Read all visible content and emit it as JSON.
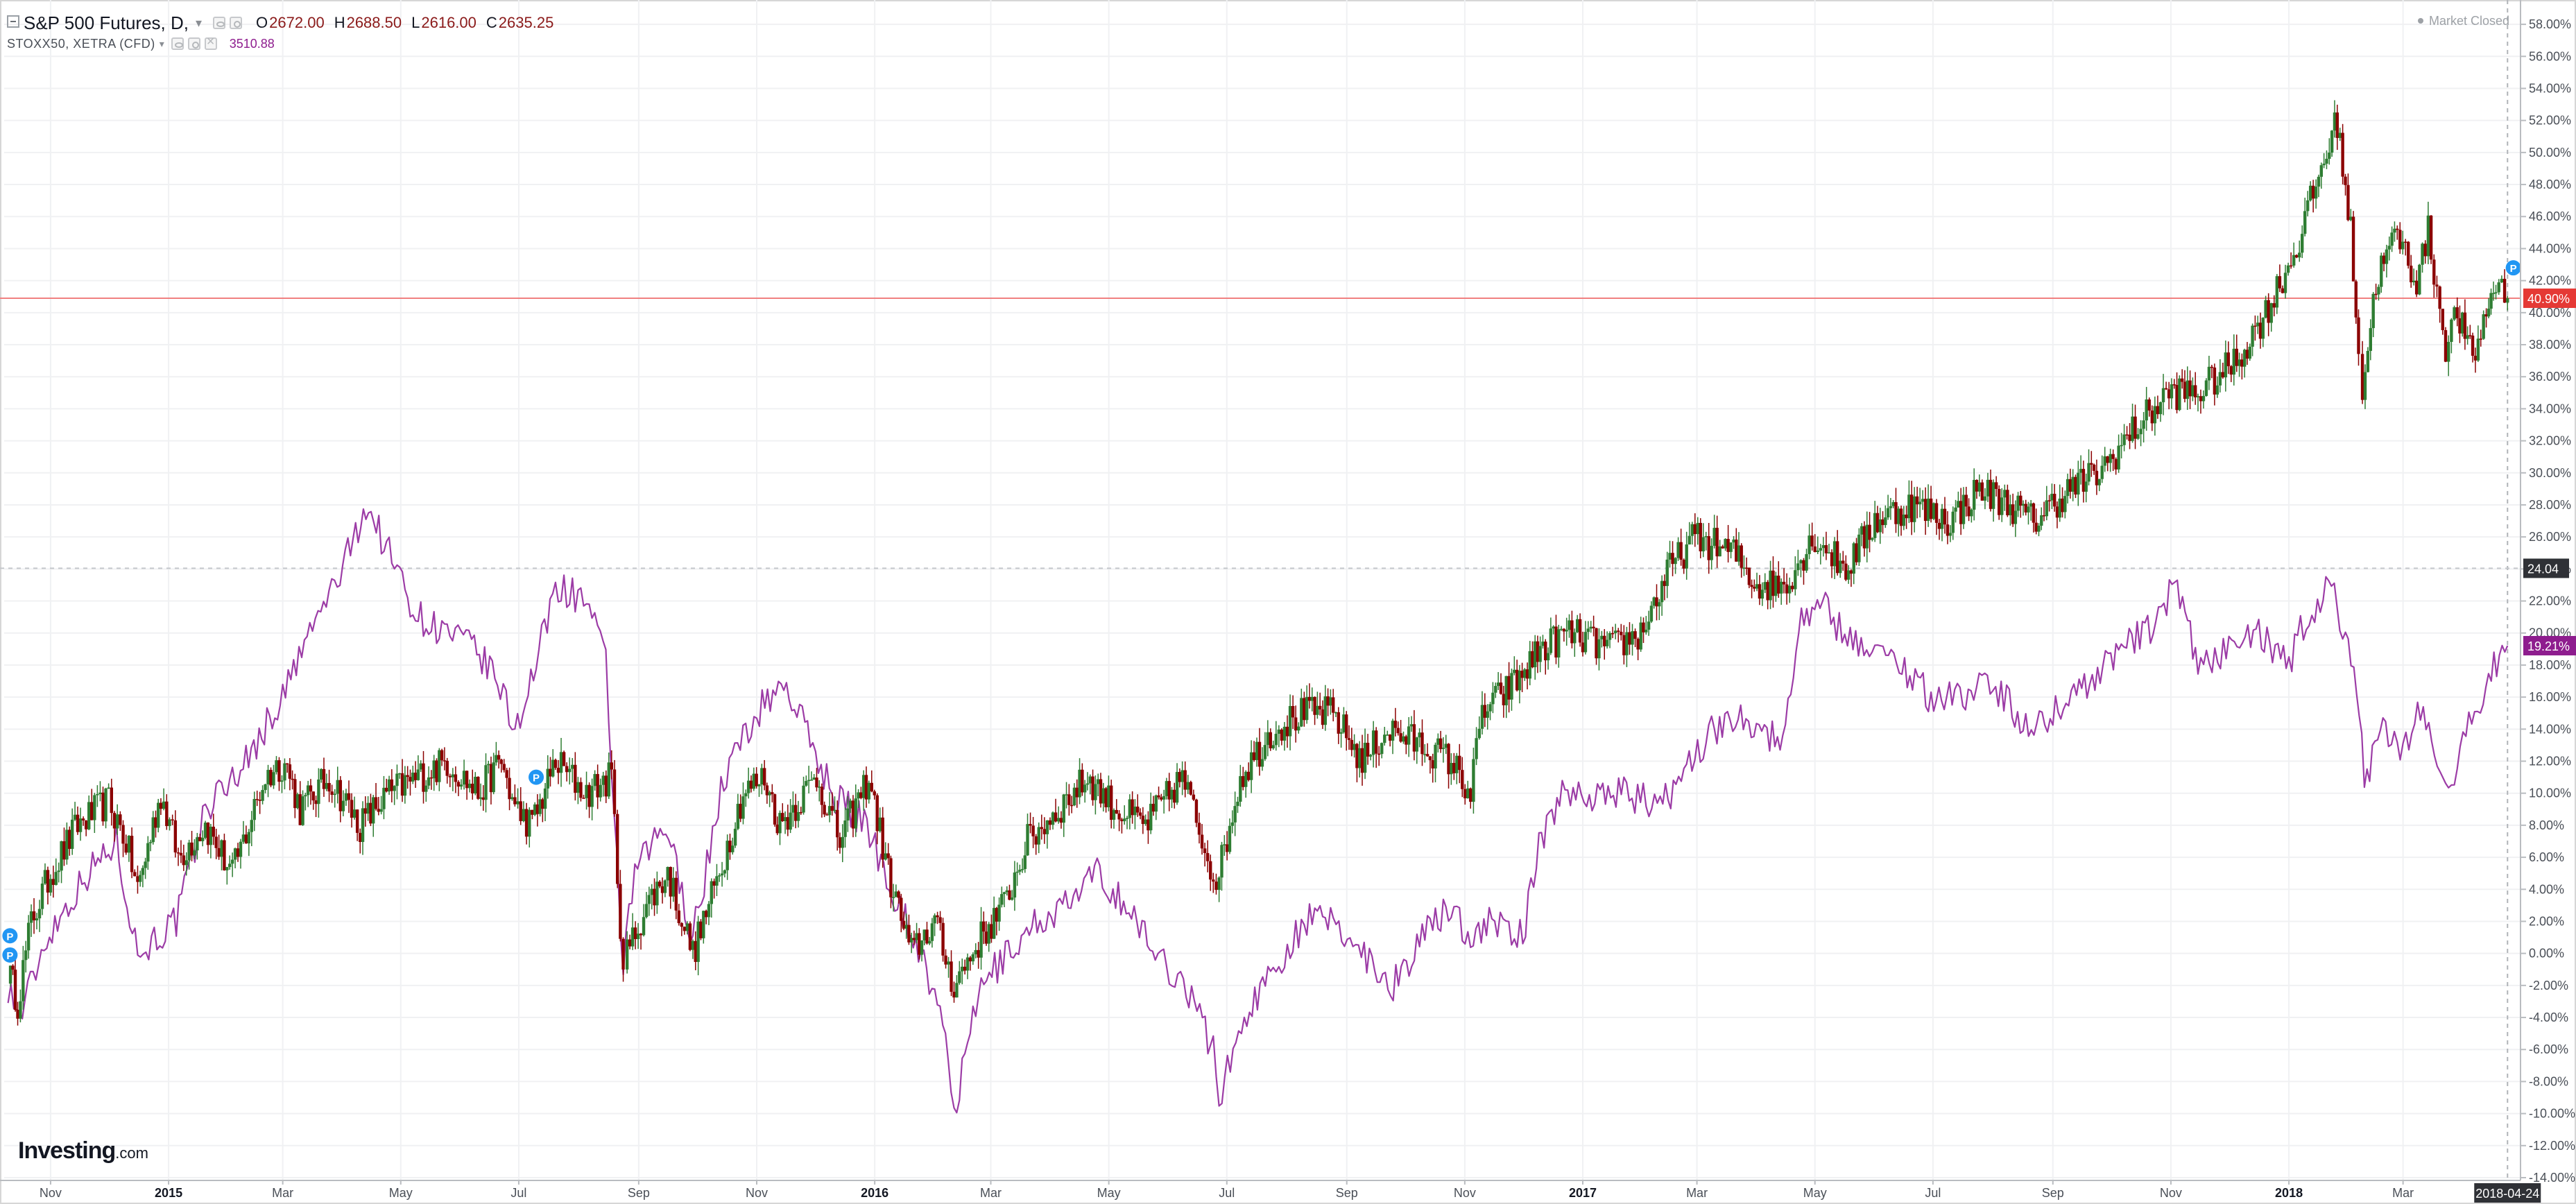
{
  "header": {
    "main_symbol": "S&P 500 Futures, D,",
    "ohlc": {
      "o_label": "O",
      "o": "2672.00",
      "h_label": "H",
      "h": "2688.50",
      "l_label": "L",
      "l": "2616.00",
      "c_label": "C",
      "c": "2635.25"
    },
    "compare_symbol": "STOXX50, XETRA (CFD)",
    "compare_value": "3510.88",
    "market_status": "Market Closed"
  },
  "branding": {
    "logo_bold": "Investing",
    "logo_suffix": ".com"
  },
  "colors": {
    "up_candle": "#2e7d32",
    "down_candle": "#8b0000",
    "compare_line": "#9c3ca6",
    "price_line": "#f08080",
    "price_tag": "#e53935",
    "compare_tag": "#8e1d8e",
    "crosshair_tag": "#2f3136",
    "marker": "#2196f3"
  },
  "chart_data": {
    "type": "line",
    "title": "",
    "x_scale": "time",
    "xlim": [
      "2014-10-08",
      "2018-04-30"
    ],
    "ylim": [
      -14,
      59
    ],
    "y_unit": "%",
    "grid": true,
    "y_ticks": [
      "58.00%",
      "56.00%",
      "54.00%",
      "52.00%",
      "50.00%",
      "48.00%",
      "46.00%",
      "44.00%",
      "42.00%",
      "40.00%",
      "38.00%",
      "36.00%",
      "34.00%",
      "32.00%",
      "30.00%",
      "28.00%",
      "26.00%",
      "24.00%",
      "22.00%",
      "20.00%",
      "18.00%",
      "16.00%",
      "14.00%",
      "12.00%",
      "10.00%",
      "8.00%",
      "6.00%",
      "4.00%",
      "2.00%",
      "0.00%",
      "-2.00%",
      "-4.00%",
      "-6.00%",
      "-8.00%",
      "-10.00%",
      "-12.00%",
      "-14.00%"
    ],
    "x_ticks": [
      {
        "label": "Nov",
        "date": "2014-11-01",
        "bold": false
      },
      {
        "label": "2015",
        "date": "2015-01-01",
        "bold": true
      },
      {
        "label": "Mar",
        "date": "2015-03-01",
        "bold": false
      },
      {
        "label": "May",
        "date": "2015-05-01",
        "bold": false
      },
      {
        "label": "Jul",
        "date": "2015-07-01",
        "bold": false
      },
      {
        "label": "Sep",
        "date": "2015-09-01",
        "bold": false
      },
      {
        "label": "Nov",
        "date": "2015-11-01",
        "bold": false
      },
      {
        "label": "2016",
        "date": "2016-01-01",
        "bold": true
      },
      {
        "label": "Mar",
        "date": "2016-03-01",
        "bold": false
      },
      {
        "label": "May",
        "date": "2016-05-01",
        "bold": false
      },
      {
        "label": "Jul",
        "date": "2016-07-01",
        "bold": false
      },
      {
        "label": "Sep",
        "date": "2016-09-01",
        "bold": false
      },
      {
        "label": "Nov",
        "date": "2016-11-01",
        "bold": false
      },
      {
        "label": "2017",
        "date": "2017-01-01",
        "bold": true
      },
      {
        "label": "Mar",
        "date": "2017-03-01",
        "bold": false
      },
      {
        "label": "May",
        "date": "2017-05-01",
        "bold": false
      },
      {
        "label": "Jul",
        "date": "2017-07-01",
        "bold": false
      },
      {
        "label": "Sep",
        "date": "2017-09-01",
        "bold": false
      },
      {
        "label": "Nov",
        "date": "2017-11-01",
        "bold": false
      },
      {
        "label": "2018",
        "date": "2018-01-01",
        "bold": true
      },
      {
        "label": "Mar",
        "date": "2018-03-01",
        "bold": false
      }
    ],
    "cursor_date_label": "2018-04-24",
    "cursor_date": "2018-04-24",
    "tags": [
      {
        "label": "40.90%",
        "value": 40.9,
        "kind": "price"
      },
      {
        "label": "24.04",
        "value": 24.04,
        "kind": "crosshair"
      },
      {
        "label": "19.21%",
        "value": 19.21,
        "kind": "compare"
      }
    ],
    "series": [
      {
        "name": "S&P 500 Futures",
        "style": "candlestick",
        "points": [
          [
            "2014-10-10",
            -1
          ],
          [
            "2014-10-15",
            -3
          ],
          [
            "2014-10-22",
            2
          ],
          [
            "2014-11-01",
            5
          ],
          [
            "2014-11-15",
            8
          ],
          [
            "2014-12-01",
            9.5
          ],
          [
            "2014-12-10",
            7
          ],
          [
            "2014-12-16",
            4
          ],
          [
            "2014-12-28",
            10
          ],
          [
            "2015-01-06",
            6
          ],
          [
            "2015-01-20",
            8
          ],
          [
            "2015-02-03",
            5
          ],
          [
            "2015-02-20",
            11
          ],
          [
            "2015-03-02",
            12
          ],
          [
            "2015-03-10",
            9
          ],
          [
            "2015-03-25",
            11
          ],
          [
            "2015-04-10",
            8
          ],
          [
            "2015-04-25",
            10
          ],
          [
            "2015-05-10",
            11
          ],
          [
            "2015-05-25",
            12
          ],
          [
            "2015-06-10",
            10
          ],
          [
            "2015-06-22",
            12
          ],
          [
            "2015-06-29",
            9
          ],
          [
            "2015-07-08",
            8
          ],
          [
            "2015-07-20",
            12
          ],
          [
            "2015-08-05",
            10
          ],
          [
            "2015-08-18",
            11
          ],
          [
            "2015-08-24",
            -1
          ],
          [
            "2015-08-26",
            0
          ],
          [
            "2015-09-05",
            3
          ],
          [
            "2015-09-16",
            5
          ],
          [
            "2015-09-29",
            0
          ],
          [
            "2015-10-10",
            4
          ],
          [
            "2015-10-25",
            10
          ],
          [
            "2015-11-05",
            11
          ],
          [
            "2015-11-13",
            8
          ],
          [
            "2015-12-02",
            11
          ],
          [
            "2015-12-14",
            7
          ],
          [
            "2015-12-29",
            11
          ],
          [
            "2016-01-08",
            5
          ],
          [
            "2016-01-20",
            0
          ],
          [
            "2016-02-01",
            2
          ],
          [
            "2016-02-11",
            -2
          ],
          [
            "2016-02-25",
            1
          ],
          [
            "2016-03-08",
            3
          ],
          [
            "2016-03-20",
            7
          ],
          [
            "2016-04-05",
            9
          ],
          [
            "2016-04-20",
            11
          ],
          [
            "2016-05-05",
            9
          ],
          [
            "2016-05-20",
            8
          ],
          [
            "2016-06-08",
            11
          ],
          [
            "2016-06-24",
            5
          ],
          [
            "2016-06-27",
            5
          ],
          [
            "2016-07-08",
            11
          ],
          [
            "2016-07-25",
            14
          ],
          [
            "2016-08-10",
            15
          ],
          [
            "2016-08-25",
            15
          ],
          [
            "2016-09-09",
            12
          ],
          [
            "2016-09-22",
            14
          ],
          [
            "2016-10-10",
            13
          ],
          [
            "2016-10-25",
            12
          ],
          [
            "2016-11-04",
            10
          ],
          [
            "2016-11-10",
            15
          ],
          [
            "2016-11-28",
            17
          ],
          [
            "2016-12-10",
            19
          ],
          [
            "2016-12-25",
            20
          ],
          [
            "2017-01-15",
            19
          ],
          [
            "2017-01-31",
            20
          ],
          [
            "2017-02-15",
            24
          ],
          [
            "2017-02-28",
            26
          ],
          [
            "2017-03-20",
            25
          ],
          [
            "2017-04-01",
            23
          ],
          [
            "2017-04-15",
            23
          ],
          [
            "2017-05-01",
            26
          ],
          [
            "2017-05-17",
            24
          ],
          [
            "2017-06-01",
            27
          ],
          [
            "2017-06-20",
            28
          ],
          [
            "2017-07-10",
            27
          ],
          [
            "2017-07-25",
            29
          ],
          [
            "2017-08-10",
            28
          ],
          [
            "2017-08-22",
            27
          ],
          [
            "2017-09-10",
            29
          ],
          [
            "2017-09-25",
            30
          ],
          [
            "2017-10-15",
            33
          ],
          [
            "2017-10-31",
            35
          ],
          [
            "2017-11-15",
            35
          ],
          [
            "2017-12-05",
            37
          ],
          [
            "2017-12-20",
            40
          ],
          [
            "2018-01-05",
            44
          ],
          [
            "2018-01-15",
            48
          ],
          [
            "2018-01-26",
            52
          ],
          [
            "2018-02-02",
            45
          ],
          [
            "2018-02-06",
            38
          ],
          [
            "2018-02-08",
            35
          ],
          [
            "2018-02-15",
            42
          ],
          [
            "2018-02-26",
            45
          ],
          [
            "2018-03-08",
            42
          ],
          [
            "2018-03-14",
            45
          ],
          [
            "2018-03-23",
            38
          ],
          [
            "2018-03-29",
            40
          ],
          [
            "2018-04-06",
            37
          ],
          [
            "2018-04-13",
            40
          ],
          [
            "2018-04-18",
            42
          ],
          [
            "2018-04-24",
            40.9
          ]
        ]
      },
      {
        "name": "STOXX50, XETRA (CFD)",
        "style": "line",
        "points": [
          [
            "2014-10-10",
            -2
          ],
          [
            "2014-10-16",
            -4
          ],
          [
            "2014-10-30",
            1
          ],
          [
            "2014-11-20",
            5
          ],
          [
            "2014-12-05",
            7
          ],
          [
            "2014-12-16",
            0
          ],
          [
            "2015-01-05",
            2
          ],
          [
            "2015-01-20",
            9
          ],
          [
            "2015-02-10",
            12
          ],
          [
            "2015-03-01",
            16
          ],
          [
            "2015-03-15",
            20
          ],
          [
            "2015-04-01",
            24
          ],
          [
            "2015-04-13",
            28
          ],
          [
            "2015-04-25",
            25
          ],
          [
            "2015-05-10",
            21
          ],
          [
            "2015-05-25",
            20
          ],
          [
            "2015-06-08",
            19
          ],
          [
            "2015-06-20",
            17
          ],
          [
            "2015-06-29",
            14
          ],
          [
            "2015-07-10",
            18
          ],
          [
            "2015-07-20",
            23
          ],
          [
            "2015-08-05",
            22
          ],
          [
            "2015-08-15",
            18
          ],
          [
            "2015-08-24",
            -1
          ],
          [
            "2015-08-30",
            5
          ],
          [
            "2015-09-15",
            8
          ],
          [
            "2015-09-29",
            1
          ],
          [
            "2015-10-15",
            11
          ],
          [
            "2015-11-01",
            15
          ],
          [
            "2015-11-15",
            17
          ],
          [
            "2015-11-30",
            13
          ],
          [
            "2015-12-10",
            10
          ],
          [
            "2015-12-28",
            8
          ],
          [
            "2016-01-10",
            4
          ],
          [
            "2016-01-25",
            0
          ],
          [
            "2016-02-08",
            -6
          ],
          [
            "2016-02-11",
            -10
          ],
          [
            "2016-02-25",
            -2
          ],
          [
            "2016-03-10",
            0
          ],
          [
            "2016-03-25",
            2
          ],
          [
            "2016-04-10",
            3
          ],
          [
            "2016-04-25",
            5
          ],
          [
            "2016-05-10",
            3
          ],
          [
            "2016-05-25",
            0
          ],
          [
            "2016-06-10",
            -2
          ],
          [
            "2016-06-24",
            -6
          ],
          [
            "2016-06-27",
            -9
          ],
          [
            "2016-07-10",
            -4
          ],
          [
            "2016-07-25",
            -1
          ],
          [
            "2016-08-10",
            2
          ],
          [
            "2016-08-25",
            2
          ],
          [
            "2016-09-10",
            0
          ],
          [
            "2016-09-25",
            -2
          ],
          [
            "2016-10-10",
            1
          ],
          [
            "2016-10-25",
            3
          ],
          [
            "2016-11-04",
            1
          ],
          [
            "2016-11-15",
            2
          ],
          [
            "2016-12-01",
            1
          ],
          [
            "2016-12-08",
            6
          ],
          [
            "2016-12-20",
            10
          ],
          [
            "2017-01-10",
            10
          ],
          [
            "2017-01-25",
            10
          ],
          [
            "2017-02-10",
            9
          ],
          [
            "2017-02-25",
            12
          ],
          [
            "2017-03-10",
            14
          ],
          [
            "2017-03-25",
            15
          ],
          [
            "2017-04-13",
            13
          ],
          [
            "2017-04-24",
            21
          ],
          [
            "2017-05-05",
            22
          ],
          [
            "2017-05-15",
            20
          ],
          [
            "2017-06-01",
            19
          ],
          [
            "2017-06-15",
            18
          ],
          [
            "2017-06-30",
            16
          ],
          [
            "2017-07-15",
            16
          ],
          [
            "2017-08-01",
            17
          ],
          [
            "2017-08-18",
            14
          ],
          [
            "2017-09-01",
            15
          ],
          [
            "2017-09-20",
            17
          ],
          [
            "2017-10-05",
            19
          ],
          [
            "2017-10-20",
            20
          ],
          [
            "2017-11-03",
            23
          ],
          [
            "2017-11-15",
            18
          ],
          [
            "2017-12-01",
            19
          ],
          [
            "2017-12-15",
            20
          ],
          [
            "2018-01-01",
            18
          ],
          [
            "2018-01-10",
            21
          ],
          [
            "2018-01-23",
            23
          ],
          [
            "2018-02-05",
            17
          ],
          [
            "2018-02-09",
            11
          ],
          [
            "2018-02-20",
            14
          ],
          [
            "2018-03-01",
            13
          ],
          [
            "2018-03-10",
            15
          ],
          [
            "2018-03-23",
            10
          ],
          [
            "2018-04-01",
            13
          ],
          [
            "2018-04-10",
            16
          ],
          [
            "2018-04-17",
            18
          ],
          [
            "2018-04-24",
            19.21
          ]
        ]
      }
    ]
  }
}
